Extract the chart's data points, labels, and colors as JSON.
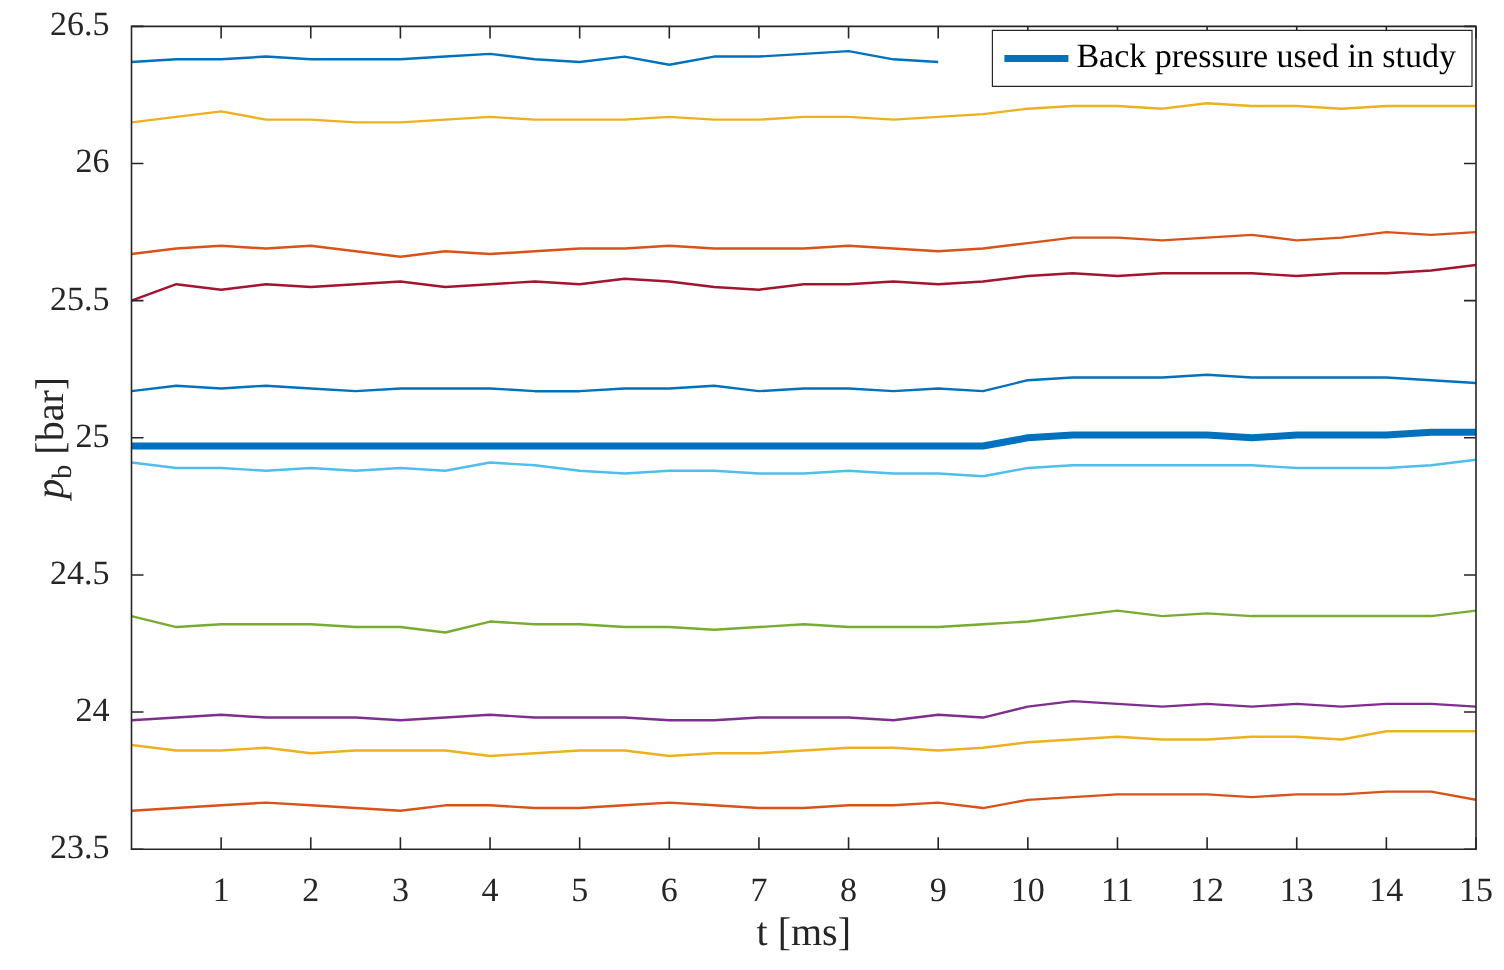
{
  "chart_data": {
    "type": "line",
    "xlabel": "t [ms]",
    "ylabel": "p$_{b}$ [bar]",
    "legend": "top right",
    "marker": "none",
    "line_style": "solid",
    "x": [
      0,
      0.5,
      1,
      1.5,
      2,
      2.5,
      3,
      3.5,
      4,
      4.5,
      5,
      5.5,
      6,
      6.5,
      7,
      7.5,
      8,
      8.5,
      9,
      9.5,
      10,
      10.5,
      11,
      11.5,
      12,
      12.5,
      13,
      13.5,
      14,
      14.5,
      15
    ],
    "xlim": [
      0,
      15
    ],
    "xticks": [
      1,
      2,
      3,
      4,
      5,
      6,
      7,
      8,
      9,
      10,
      11,
      12,
      13,
      14,
      15
    ],
    "ylim": [
      23.5,
      26.5
    ],
    "yticks": [
      23.5,
      24,
      24.5,
      25,
      25.5,
      26,
      26.5
    ],
    "series": [
      {
        "color": "#0072bd",
        "values": [
          26.37,
          26.38,
          26.38,
          26.39,
          26.38,
          26.38,
          26.38,
          26.39,
          26.4,
          26.38,
          26.37,
          26.39,
          26.36,
          26.39,
          26.39,
          26.4,
          26.41,
          26.38,
          26.37,
          null,
          null,
          null,
          null,
          null,
          null,
          null,
          null,
          null,
          null,
          null,
          null
        ]
      },
      {
        "color": "#edb120",
        "values": [
          26.15,
          26.17,
          26.19,
          26.16,
          26.16,
          26.15,
          26.15,
          26.16,
          26.17,
          26.16,
          26.16,
          26.16,
          26.17,
          26.16,
          26.16,
          26.17,
          26.17,
          26.16,
          26.17,
          26.18,
          26.2,
          26.21,
          26.21,
          26.2,
          26.22,
          26.21,
          26.21,
          26.2,
          26.21,
          26.21,
          26.21
        ]
      },
      {
        "color": "#d95319",
        "values": [
          25.67,
          25.69,
          25.7,
          25.69,
          25.7,
          25.68,
          25.66,
          25.68,
          25.67,
          25.68,
          25.69,
          25.69,
          25.7,
          25.69,
          25.69,
          25.69,
          25.7,
          25.69,
          25.68,
          25.69,
          25.71,
          25.73,
          25.73,
          25.72,
          25.73,
          25.74,
          25.72,
          25.73,
          25.75,
          25.74,
          25.75
        ]
      },
      {
        "color": "#a2142f",
        "values": [
          25.5,
          25.56,
          25.54,
          25.56,
          25.55,
          25.56,
          25.57,
          25.55,
          25.56,
          25.57,
          25.56,
          25.58,
          25.57,
          25.55,
          25.54,
          25.56,
          25.56,
          25.57,
          25.56,
          25.57,
          25.59,
          25.6,
          25.59,
          25.6,
          25.6,
          25.6,
          25.59,
          25.6,
          25.6,
          25.61,
          25.63
        ]
      },
      {
        "color": "#0072bd",
        "values": [
          25.17,
          25.19,
          25.18,
          25.19,
          25.18,
          25.17,
          25.18,
          25.18,
          25.18,
          25.17,
          25.17,
          25.18,
          25.18,
          25.19,
          25.17,
          25.18,
          25.18,
          25.17,
          25.18,
          25.17,
          25.21,
          25.22,
          25.22,
          25.22,
          25.23,
          25.22,
          25.22,
          25.22,
          25.22,
          25.21,
          25.2
        ]
      },
      {
        "name": "Back pressure used in study",
        "color": "#0072bd",
        "values": [
          24.97,
          24.97,
          24.97,
          24.97,
          24.97,
          24.97,
          24.97,
          24.97,
          24.97,
          24.97,
          24.97,
          24.97,
          24.97,
          24.97,
          24.97,
          24.97,
          24.97,
          24.97,
          24.97,
          24.97,
          25.0,
          25.01,
          25.01,
          25.01,
          25.01,
          25.0,
          25.01,
          25.01,
          25.01,
          25.02,
          25.02
        ]
      },
      {
        "color": "#4dbeee",
        "values": [
          24.91,
          24.89,
          24.89,
          24.88,
          24.89,
          24.88,
          24.89,
          24.88,
          24.91,
          24.9,
          24.88,
          24.87,
          24.88,
          24.88,
          24.87,
          24.87,
          24.88,
          24.87,
          24.87,
          24.86,
          24.89,
          24.9,
          24.9,
          24.9,
          24.9,
          24.9,
          24.89,
          24.89,
          24.89,
          24.9,
          24.92
        ]
      },
      {
        "color": "#77ac30",
        "values": [
          24.35,
          24.31,
          24.32,
          24.32,
          24.32,
          24.31,
          24.31,
          24.29,
          24.33,
          24.32,
          24.32,
          24.31,
          24.31,
          24.3,
          24.31,
          24.32,
          24.31,
          24.31,
          24.31,
          24.32,
          24.33,
          24.35,
          24.37,
          24.35,
          24.36,
          24.35,
          24.35,
          24.35,
          24.35,
          24.35,
          24.37
        ]
      },
      {
        "color": "#7e2f8e",
        "values": [
          23.97,
          23.98,
          23.99,
          23.98,
          23.98,
          23.98,
          23.97,
          23.98,
          23.99,
          23.98,
          23.98,
          23.98,
          23.97,
          23.97,
          23.98,
          23.98,
          23.98,
          23.97,
          23.99,
          23.98,
          24.02,
          24.04,
          24.03,
          24.02,
          24.03,
          24.02,
          24.03,
          24.02,
          24.03,
          24.03,
          24.02
        ]
      },
      {
        "color": "#edb120",
        "values": [
          23.88,
          23.86,
          23.86,
          23.87,
          23.85,
          23.86,
          23.86,
          23.86,
          23.84,
          23.85,
          23.86,
          23.86,
          23.84,
          23.85,
          23.85,
          23.86,
          23.87,
          23.87,
          23.86,
          23.87,
          23.89,
          23.9,
          23.91,
          23.9,
          23.9,
          23.91,
          23.91,
          23.9,
          23.93,
          23.93,
          23.93
        ]
      },
      {
        "color": "#d95319",
        "values": [
          23.64,
          23.65,
          23.66,
          23.67,
          23.66,
          23.65,
          23.64,
          23.66,
          23.66,
          23.65,
          23.65,
          23.66,
          23.67,
          23.66,
          23.65,
          23.65,
          23.66,
          23.66,
          23.67,
          23.65,
          23.68,
          23.69,
          23.7,
          23.7,
          23.7,
          23.69,
          23.7,
          23.7,
          23.71,
          23.71,
          23.68
        ]
      }
    ]
  }
}
